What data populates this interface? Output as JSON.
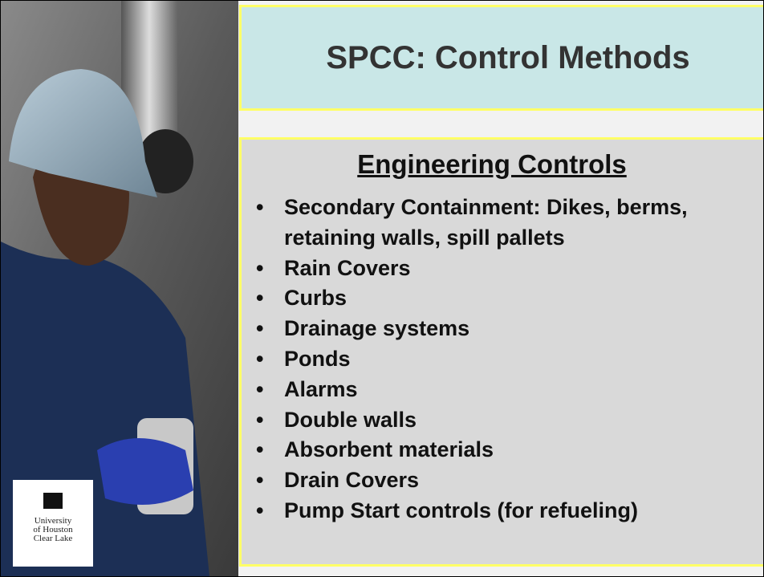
{
  "header": {
    "title": "SPCC: Control Methods"
  },
  "content": {
    "heading": "Engineering Controls",
    "bullets": [
      "Secondary Containment: Dikes, berms, retaining walls, spill pallets",
      "Rain Covers",
      "Curbs",
      "Drainage systems",
      "Ponds",
      "Alarms",
      "Double walls",
      "Absorbent materials",
      "Drain Covers",
      "Pump Start controls (for refueling)"
    ]
  },
  "logo": {
    "lines": [
      "University",
      "of Houston",
      "Clear Lake"
    ]
  }
}
